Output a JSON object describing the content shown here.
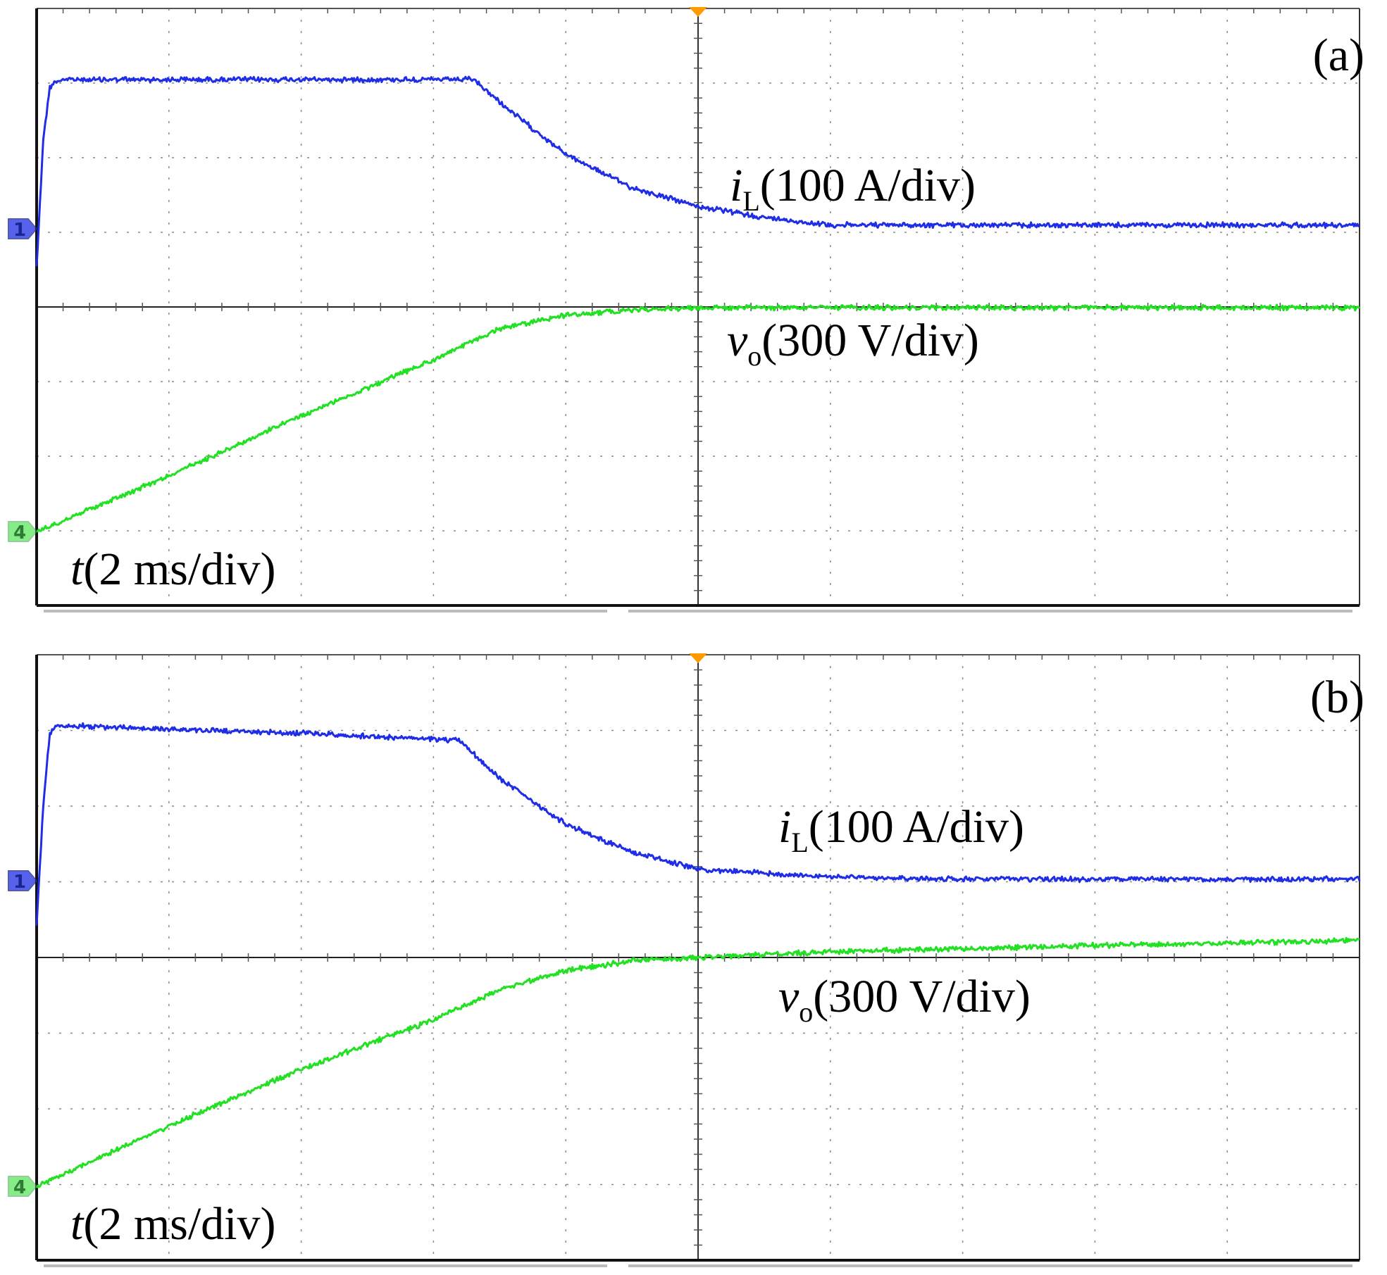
{
  "colors": {
    "channel1": "#1f2ee6",
    "channel4": "#22e022",
    "trigger": "#ff9a00",
    "grid": "#8a8a8a",
    "axis": "#000000"
  },
  "chart_data": [
    {
      "type": "line",
      "panel_label": "(a)",
      "x_label": {
        "var": "t",
        "unit": "(2 ms/div)"
      },
      "time_divisions": 10,
      "amplitude_divisions": 8,
      "x_unit": "div",
      "y_unit": "div",
      "grid": true,
      "series": [
        {
          "name_var": "i",
          "name_sub": "L",
          "scale": "(100 A/div)",
          "channel": "1",
          "color": "#1f2ee6",
          "ground_div": 0,
          "x": [
            0,
            0.05,
            0.1,
            0.15,
            0.2,
            1.0,
            2.0,
            3.3,
            3.6,
            4.0,
            4.5,
            5.0,
            5.5,
            6.0,
            8.0,
            10.0
          ],
          "y": [
            -0.5,
            1.2,
            1.9,
            1.98,
            2.0,
            2.0,
            2.0,
            2.0,
            1.55,
            1.0,
            0.55,
            0.3,
            0.15,
            0.05,
            0.05,
            0.05
          ]
        },
        {
          "name_var": "v",
          "name_sub": "o",
          "scale": "(300 V/div)",
          "channel": "4",
          "color": "#22e022",
          "ground_div": 0,
          "x": [
            0,
            1.0,
            2.0,
            3.0,
            3.5,
            4.0,
            4.5,
            5.0,
            6.0,
            10.0
          ],
          "y": [
            0,
            0.75,
            1.55,
            2.3,
            2.72,
            2.9,
            2.97,
            3.0,
            3.0,
            3.0
          ]
        }
      ]
    },
    {
      "type": "line",
      "panel_label": "(b)",
      "x_label": {
        "var": "t",
        "unit": "(2 ms/div)"
      },
      "time_divisions": 10,
      "amplitude_divisions": 8,
      "x_unit": "div",
      "y_unit": "div",
      "grid": true,
      "series": [
        {
          "name_var": "i",
          "name_sub": "L",
          "scale": "(100 A/div)",
          "channel": "1",
          "color": "#1f2ee6",
          "ground_div": 0,
          "x": [
            0,
            0.05,
            0.1,
            0.15,
            0.25,
            1.0,
            2.0,
            3.2,
            3.5,
            4.0,
            4.5,
            5.0,
            6.0,
            7.0,
            10.0
          ],
          "y": [
            -0.6,
            1.0,
            1.95,
            2.05,
            2.05,
            2.0,
            1.95,
            1.85,
            1.35,
            0.75,
            0.38,
            0.15,
            0.05,
            0.02,
            0.02
          ]
        },
        {
          "name_var": "v",
          "name_sub": "o",
          "scale": "(300 V/div)",
          "channel": "4",
          "color": "#22e022",
          "ground_div": 0,
          "x": [
            0,
            1.0,
            2.0,
            3.0,
            3.5,
            4.0,
            4.5,
            5.0,
            6.0,
            8.0,
            10.0
          ],
          "y": [
            0,
            0.8,
            1.55,
            2.2,
            2.6,
            2.85,
            2.98,
            3.02,
            3.1,
            3.18,
            3.25
          ]
        }
      ]
    }
  ]
}
